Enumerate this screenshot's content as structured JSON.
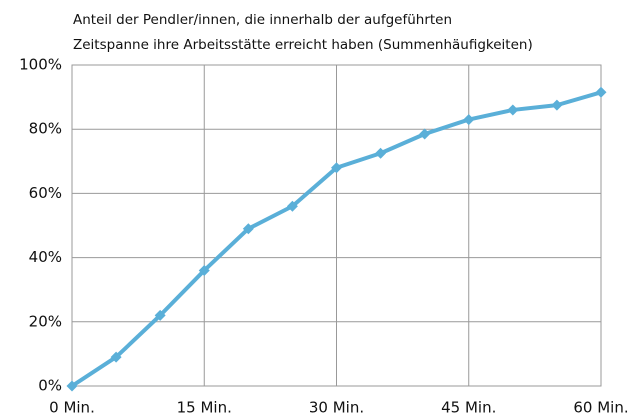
{
  "chart_data": {
    "type": "line",
    "title": [
      "Anteil der Pendler/innen, die innerhalb der aufgeführten",
      "Zeitspanne ihre Arbeitsstätte erreicht haben (Summenhäufigkeiten)"
    ],
    "x": [
      0,
      5,
      10,
      15,
      20,
      25,
      30,
      35,
      40,
      45,
      50,
      55,
      60
    ],
    "series": [
      {
        "color": "#5aafd8",
        "values": [
          0,
          9,
          22,
          36,
          49,
          56,
          68,
          72.5,
          78.5,
          83,
          86,
          87.5,
          91.5
        ]
      }
    ],
    "xlim": [
      0,
      60
    ],
    "xticks": [
      {
        "value": 0,
        "label": "0 Min."
      },
      {
        "value": 15,
        "label": "15 Min."
      },
      {
        "value": 30,
        "label": "30 Min."
      },
      {
        "value": 45,
        "label": "45 Min."
      },
      {
        "value": 60,
        "label": "60 Min."
      }
    ],
    "ylim": [
      0,
      100
    ],
    "yticks": [
      {
        "value": 0,
        "label": "0%"
      },
      {
        "value": 20,
        "label": "20%"
      },
      {
        "value": 40,
        "label": "40%"
      },
      {
        "value": 60,
        "label": "60%"
      },
      {
        "value": 80,
        "label": "80%"
      },
      {
        "value": 100,
        "label": "100%"
      }
    ],
    "grid": true
  }
}
